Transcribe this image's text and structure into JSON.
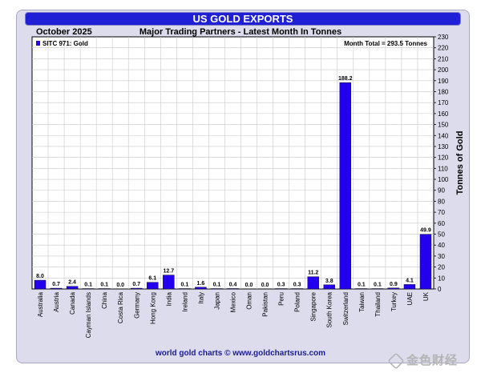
{
  "header": {
    "title": "US GOLD EXPORTS",
    "period": "October 2025",
    "subtitle": "Major Trading Partners - Latest Month In Tonnes"
  },
  "footer": {
    "credit": "world gold charts © www.goldchartsrus.com",
    "watermark": "金色财经"
  },
  "colors": {
    "bar": "#2200ee",
    "title_bar": "#1f1fd6",
    "frame": "#dcdcec",
    "grid": "#c8c8c8"
  },
  "chart_data": {
    "type": "bar",
    "series": [
      {
        "name": "SITC 971: Gold",
        "values": [
          8.0,
          0.7,
          2.4,
          0.1,
          0.1,
          0.0,
          0.7,
          6.1,
          12.7,
          0.1,
          1.6,
          0.1,
          0.4,
          0.0,
          0.0,
          0.3,
          0.3,
          11.2,
          3.8,
          188.2,
          0.1,
          0.1,
          0.9,
          4.1,
          49.9
        ],
        "labels": [
          "8.0",
          "0.7",
          "2.4",
          "0.1",
          "0.1",
          "0.0",
          "0.7",
          "6.1",
          "12.7",
          "0.1",
          "1.6",
          "0.1",
          "0.4",
          "0.0",
          "0.0",
          "0.3",
          "0.3",
          "11.2",
          "3.8",
          "188.2",
          "0.1",
          "0.1",
          "0.9",
          "4.1",
          "49.9"
        ]
      }
    ],
    "categories": [
      "Australia",
      "Austria",
      "Canada",
      "Cayman Islands",
      "China",
      "Costa Rica",
      "Germany",
      "Hong Kong",
      "India",
      "Ireland",
      "Italy",
      "Japan",
      "Mexico",
      "Oman",
      "Pakistan",
      "Peru",
      "Poland",
      "Singapore",
      "South Korea",
      "Switzerland",
      "Taiwan",
      "Thailand",
      "Turkey",
      "UAE",
      "UK"
    ],
    "ylabel": "Tonnes of Gold",
    "ylim": [
      0,
      230
    ],
    "ytick_step": 10,
    "grid": true,
    "legend": "top-left",
    "annotation": "Month Total = 293.5 Tonnes"
  }
}
